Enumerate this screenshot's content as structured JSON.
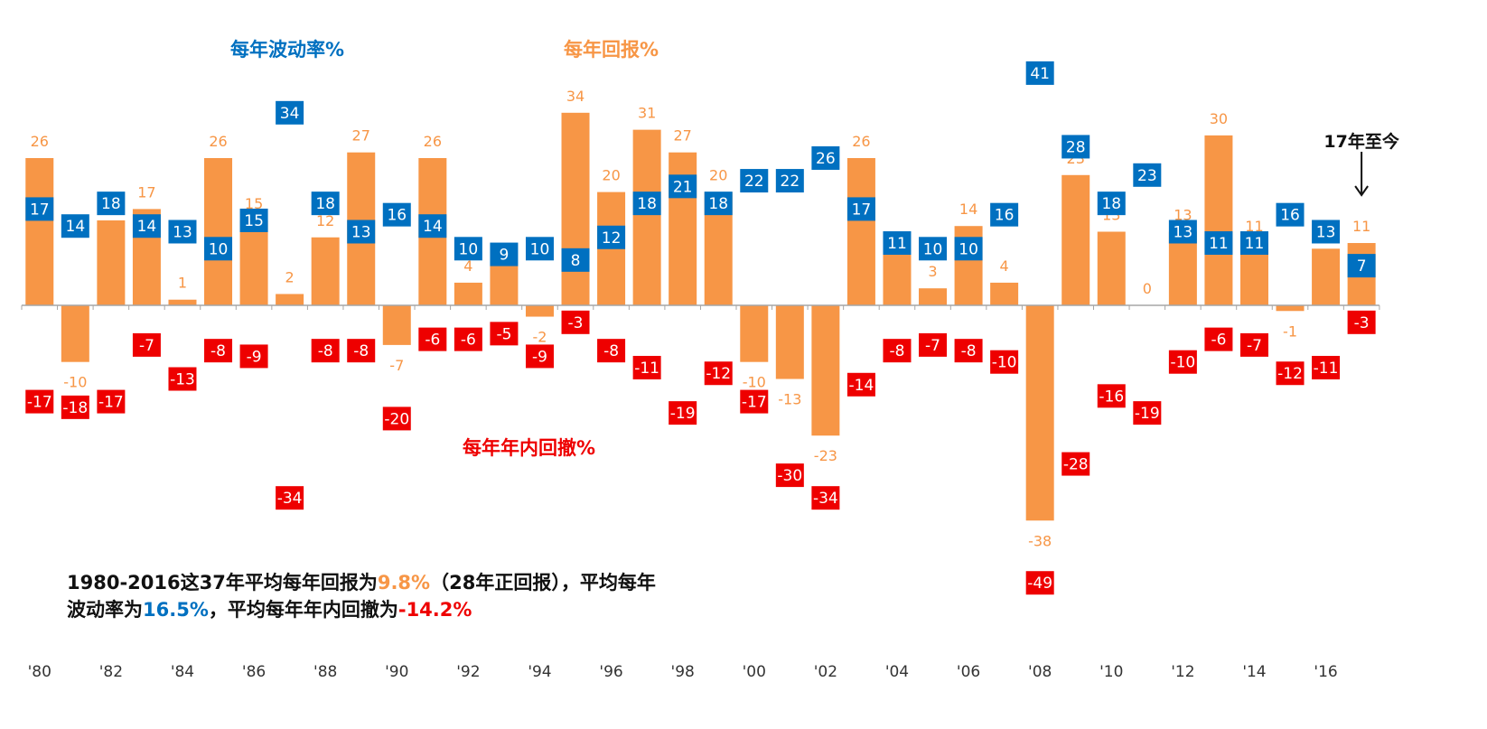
{
  "chart_data": {
    "type": "bar",
    "categories": [
      "1980",
      "1981",
      "1982",
      "1983",
      "1984",
      "1985",
      "1986",
      "1987",
      "1988",
      "1989",
      "1990",
      "1991",
      "1992",
      "1993",
      "1994",
      "1995",
      "1996",
      "1997",
      "1998",
      "1999",
      "2000",
      "2001",
      "2002",
      "2003",
      "2004",
      "2005",
      "2006",
      "2007",
      "2008",
      "2009",
      "2010",
      "2011",
      "2012",
      "2013",
      "2014",
      "2015",
      "2016",
      "2017"
    ],
    "x_tick_labels": [
      "'80",
      "",
      "'82",
      "",
      "'84",
      "",
      "'86",
      "",
      "'88",
      "",
      "'90",
      "",
      "'92",
      "",
      "'94",
      "",
      "'96",
      "",
      "'98",
      "",
      "'00",
      "",
      "'02",
      "",
      "'04",
      "",
      "'06",
      "",
      "'08",
      "",
      "'10",
      "",
      "'12",
      "",
      "'14",
      "",
      "'16",
      ""
    ],
    "series": [
      {
        "name": "每年回报%",
        "values": [
          26,
          -10,
          15,
          17,
          1,
          26,
          15,
          2,
          12,
          27,
          -7,
          26,
          4,
          7,
          -2,
          34,
          20,
          31,
          27,
          20,
          -10,
          -13,
          -23,
          26,
          9,
          3,
          14,
          4,
          -38,
          23,
          13,
          0,
          13,
          30,
          11,
          -1,
          10,
          11
        ]
      },
      {
        "name": "每年波动率%",
        "values": [
          17,
          14,
          18,
          14,
          13,
          10,
          15,
          34,
          18,
          13,
          16,
          14,
          10,
          9,
          10,
          8,
          12,
          18,
          21,
          18,
          22,
          22,
          26,
          17,
          11,
          10,
          10,
          16,
          41,
          28,
          18,
          23,
          13,
          11,
          11,
          16,
          13,
          7
        ]
      },
      {
        "name": "每年年内回撤%",
        "values": [
          -17,
          -18,
          -17,
          -7,
          -13,
          -8,
          -9,
          -34,
          -8,
          -8,
          -20,
          -6,
          -6,
          -5,
          -9,
          -3,
          -8,
          -11,
          -19,
          -12,
          -17,
          -30,
          -34,
          -14,
          -8,
          -7,
          -8,
          -10,
          -49,
          -28,
          -16,
          -19,
          -10,
          -6,
          -7,
          -12,
          -11,
          -3
        ]
      }
    ],
    "legend_labels": {
      "volatility": "每年波动率%",
      "return": "每年回报%",
      "drawdown": "每年年内回撤%"
    },
    "annotation": "17年至今",
    "colors": {
      "return": "#f79646",
      "volatility": "#0070c0",
      "drawdown": "#ee0000",
      "axis": "#a6a6a6",
      "text": "#111111"
    },
    "ylim": [
      -50,
      45
    ],
    "grid": false,
    "xlabel": "",
    "ylabel": ""
  },
  "summary": {
    "line1_prefix": "1980-2016这37年平均每年回报为",
    "avg_return": "9.8%",
    "line1_mid": "（28年正回报），平均每年",
    "line2_prefix": "波动率为",
    "avg_volatility": "16.5%",
    "line2_mid": "，平均每年年内回撤为",
    "avg_drawdown": "-14.2%"
  }
}
